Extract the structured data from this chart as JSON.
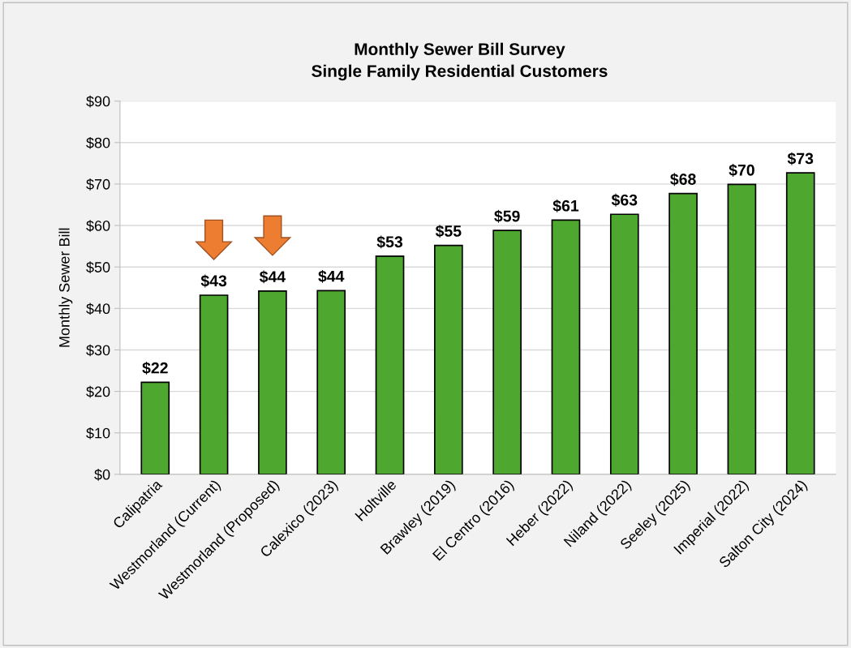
{
  "chart_data": {
    "type": "bar",
    "title": "Monthly Sewer Bill Survey\nSingle Family Residential Customers",
    "ylabel": "Monthly Sewer Bill",
    "categories": [
      "Calipatria",
      "Westmorland (Current)",
      "Westmorland (Proposed)",
      "Calexico (2023)",
      "Holtville",
      "Brawley (2019)",
      "El Centro (2016)",
      "Heber (2022)",
      "Niland (2022)",
      "Seeley (2025)",
      "Imperial (2022)",
      "Salton City (2024)"
    ],
    "values": [
      22.2,
      43.2,
      44.2,
      44.3,
      52.6,
      55.2,
      58.8,
      61.3,
      62.7,
      67.7,
      69.9,
      72.7
    ],
    "value_labels": [
      "$22",
      "$43",
      "$44",
      "$44",
      "$53",
      "$55",
      "$59",
      "$61",
      "$63",
      "$68",
      "$70",
      "$73"
    ],
    "color": "#4ea72e",
    "ylim": [
      0,
      90
    ],
    "yticks": [
      {
        "value": 0,
        "label": "$0"
      },
      {
        "value": 10,
        "label": "$10"
      },
      {
        "value": 20,
        "label": "$20"
      },
      {
        "value": 30,
        "label": "$30"
      },
      {
        "value": 40,
        "label": "$40"
      },
      {
        "value": 50,
        "label": "$50"
      },
      {
        "value": 60,
        "label": "$60"
      },
      {
        "value": 70,
        "label": "$70"
      },
      {
        "value": 80,
        "label": "$80"
      },
      {
        "value": 90,
        "label": "$90"
      }
    ],
    "grid": "y"
  }
}
